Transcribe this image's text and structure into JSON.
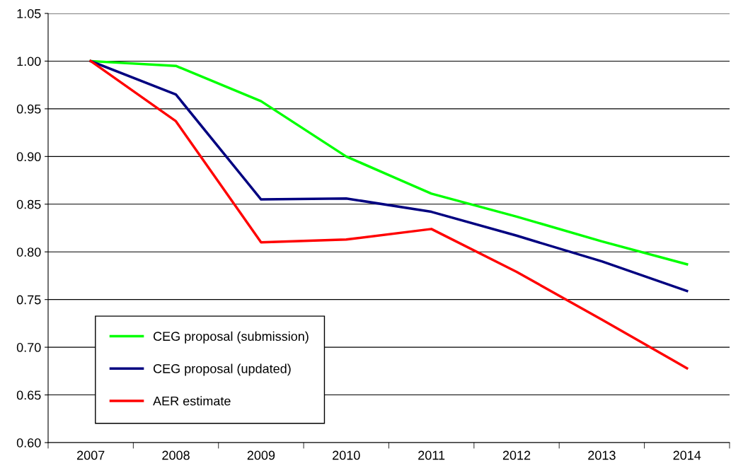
{
  "chart_data": {
    "type": "line",
    "categories": [
      "2007",
      "2008",
      "2009",
      "2010",
      "2011",
      "2012",
      "2013",
      "2014"
    ],
    "series": [
      {
        "name": "CEG proposal (submission)",
        "color": "#00ff00",
        "values": [
          1.0,
          0.995,
          0.958,
          0.9,
          0.861,
          0.837,
          0.811,
          0.787
        ]
      },
      {
        "name": "CEG proposal (updated)",
        "color": "#000080",
        "values": [
          1.0,
          0.965,
          0.855,
          0.856,
          0.842,
          0.817,
          0.79,
          0.759
        ]
      },
      {
        "name": "AER estimate",
        "color": "#ff0000",
        "values": [
          1.0,
          0.937,
          0.81,
          0.813,
          0.824,
          0.779,
          0.729,
          0.678
        ]
      }
    ],
    "ylim": [
      0.6,
      1.05
    ],
    "yticks": [
      {
        "value": 0.6,
        "label": "0.60"
      },
      {
        "value": 0.65,
        "label": "0.65"
      },
      {
        "value": 0.7,
        "label": "0.70"
      },
      {
        "value": 0.75,
        "label": "0.75"
      },
      {
        "value": 0.8,
        "label": "0.80"
      },
      {
        "value": 0.85,
        "label": "0.85"
      },
      {
        "value": 0.9,
        "label": "0.90"
      },
      {
        "value": 0.95,
        "label": "0.95"
      },
      {
        "value": 1.0,
        "label": "1.00"
      },
      {
        "value": 1.05,
        "label": "1.05"
      }
    ],
    "grid": "y",
    "legend": "bottom left",
    "marker": "none",
    "line_style": "solid"
  }
}
